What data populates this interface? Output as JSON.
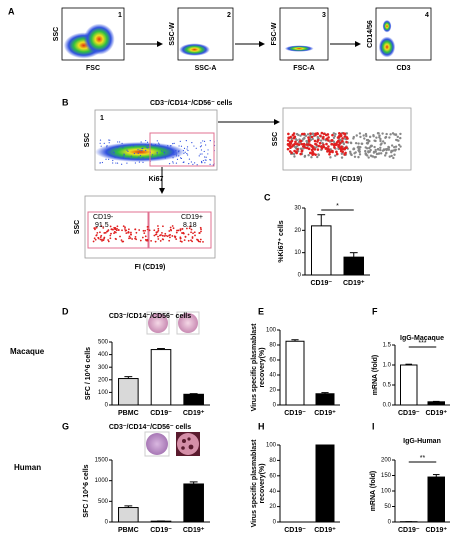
{
  "panel_letters": [
    "A",
    "B",
    "C",
    "D",
    "E",
    "F",
    "G",
    "H",
    "I"
  ],
  "flow_a": [
    {
      "number": "1",
      "x_label": "FSC",
      "y_label": "SSC"
    },
    {
      "number": "2",
      "x_label": "SSC-A",
      "y_label": "SSC-W"
    },
    {
      "number": "3",
      "x_label": "FSC-A",
      "y_label": "FSC-W"
    },
    {
      "number": "4",
      "x_label": "CD3",
      "y_label": "CD14/56"
    }
  ],
  "flow_b": {
    "title": "CD3⁻/CD14⁻/CD56⁻ cells",
    "gate_number": "1",
    "plot1": {
      "x_label": "Ki67",
      "y_label": "SSC"
    },
    "plot2": {
      "x_label": "FI (CD19)",
      "y_label": "SSC"
    },
    "plot3": {
      "x_label": "FI (CD19)",
      "y_label": "SSC",
      "gate_labels": [
        "CD19-",
        "91.5",
        "CD19+",
        "8.18"
      ]
    }
  },
  "row_labels": [
    "Macaque",
    "Human"
  ],
  "chart_data": [
    {
      "type": "bar",
      "y_label": "%Ki67⁺ cells",
      "categories": [
        "CD19⁻",
        "CD19⁺"
      ],
      "values": [
        22,
        8
      ],
      "errors": [
        5,
        2
      ],
      "colors": [
        "#ffffff",
        "#000000"
      ],
      "ylim": [
        0,
        30
      ],
      "yticks": [
        0,
        10,
        20,
        30
      ],
      "annotation": "*"
    },
    {
      "type": "bar",
      "title": "CD3⁻/CD14⁻/CD56⁻ cells",
      "y_label": "SFC / 10^6 cells",
      "categories": [
        "PBMC",
        "CD19⁻",
        "CD19⁺"
      ],
      "values": [
        210,
        440,
        85
      ],
      "errors": [
        15,
        8,
        5
      ],
      "colors": [
        "#d9d9d9",
        "#ffffff",
        "#000000"
      ],
      "ylim": [
        0,
        500
      ],
      "yticks": [
        0,
        100,
        200,
        300,
        400,
        500
      ]
    },
    {
      "type": "bar",
      "y_label": [
        "Virus specific plasmablast",
        "recovery(%)"
      ],
      "categories": [
        "CD19⁻",
        "CD19⁺"
      ],
      "values": [
        85,
        15
      ],
      "errors": [
        2,
        1.5
      ],
      "colors": [
        "#ffffff",
        "#000000"
      ],
      "ylim": [
        0,
        100
      ],
      "yticks": [
        0,
        20,
        40,
        60,
        80,
        100
      ]
    },
    {
      "type": "bar",
      "title": "IgG-Macaque",
      "y_label": "mRNA (fold)",
      "categories": [
        "CD19⁻",
        "CD19⁺"
      ],
      "values": [
        1.0,
        0.08
      ],
      "errors": [
        0.02,
        0.01
      ],
      "colors": [
        "#ffffff",
        "#000000"
      ],
      "ylim": [
        0,
        1.5
      ],
      "yticks": [
        {
          "value": 0,
          "label": "0.0"
        },
        {
          "value": 0.5,
          "label": "0.5"
        },
        {
          "value": 1,
          "label": "1.0"
        },
        {
          "value": 1.5,
          "label": "1.5"
        }
      ],
      "annotation": "***"
    },
    {
      "type": "bar",
      "title": "CD3⁻/CD14⁻/CD56⁻ cells",
      "y_label": "SFC / 10^6 cells",
      "categories": [
        "PBMC",
        "CD19⁻",
        "CD19⁺"
      ],
      "values": [
        350,
        20,
        920
      ],
      "errors": [
        40,
        5,
        50
      ],
      "colors": [
        "#d9d9d9",
        "#ffffff",
        "#000000"
      ],
      "ylim": [
        0,
        1500
      ],
      "yticks": [
        0,
        500,
        1000,
        1500
      ]
    },
    {
      "type": "bar",
      "y_label": [
        "Virus specific plasmablast",
        "recovery(%)"
      ],
      "categories": [
        "CD19⁻",
        "CD19⁺"
      ],
      "values": [
        0,
        100
      ],
      "colors": [
        "#ffffff",
        "#000000"
      ],
      "ylim": [
        0,
        100
      ],
      "yticks": [
        0,
        20,
        40,
        60,
        80,
        100
      ]
    },
    {
      "type": "bar",
      "title": "IgG-Human",
      "y_label": "mRNA (fold)",
      "categories": [
        "CD19⁻",
        "CD19⁺"
      ],
      "values": [
        1,
        145
      ],
      "errors": [
        0,
        8
      ],
      "colors": [
        "#ffffff",
        "#000000"
      ],
      "ylim": [
        0,
        200
      ],
      "yticks": [
        0,
        50,
        100,
        150,
        200
      ],
      "annotation": "**"
    }
  ]
}
